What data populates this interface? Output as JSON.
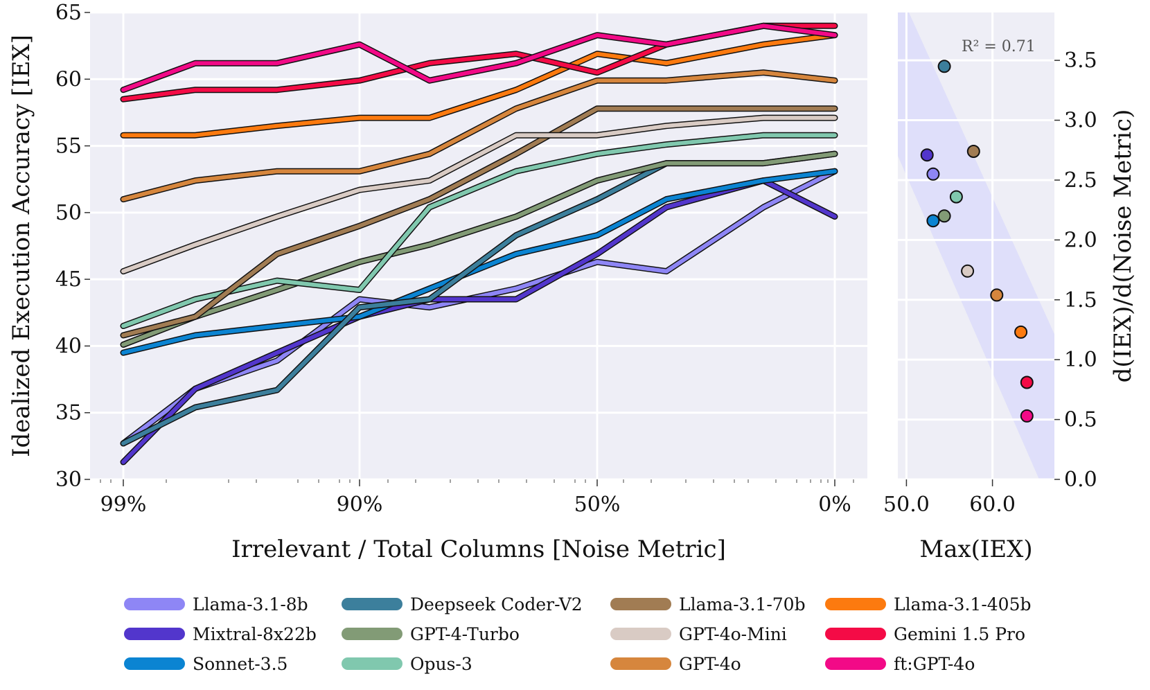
{
  "chart_data": [
    {
      "type": "line",
      "xlabel": "Irrelevant / Total Columns [Noise Metric]",
      "ylabel": "Idealized Execution Accuracy [IEX]",
      "x_scale": "log of remaining irrelevant fraction (reversed)",
      "x_tick_labels": [
        "99%",
        "90%",
        "50%",
        "0%"
      ],
      "x": [
        "99%",
        "97%",
        "93%",
        "90%",
        "80%",
        "67%",
        "50%",
        "33%",
        "10%",
        "0%"
      ],
      "ylim": [
        30,
        65
      ],
      "yticks": [
        30,
        35,
        40,
        45,
        50,
        55,
        60,
        65
      ],
      "grid": true,
      "series": [
        {
          "name": "Llama-3.1-8b",
          "color": "#8e86f5",
          "values": [
            32.7,
            36.8,
            38.9,
            43.5,
            42.9,
            44.3,
            46.3,
            45.6,
            50.4,
            53.1
          ]
        },
        {
          "name": "Mixtral-8x22b",
          "color": "#5236cc",
          "values": [
            31.3,
            36.8,
            39.5,
            42.2,
            43.5,
            43.5,
            46.9,
            50.4,
            52.4,
            49.7
          ]
        },
        {
          "name": "Sonnet-3.5",
          "color": "#0b84d2",
          "values": [
            39.5,
            40.8,
            41.5,
            42.2,
            44.3,
            46.9,
            48.3,
            51.0,
            52.4,
            53.1
          ]
        },
        {
          "name": "Deepseek Coder-V2",
          "color": "#3c7f9c",
          "values": [
            32.7,
            35.4,
            36.7,
            42.9,
            43.5,
            48.3,
            51.0,
            53.7,
            53.7,
            54.4
          ]
        },
        {
          "name": "GPT-4-Turbo",
          "color": "#829b76",
          "values": [
            40.1,
            42.2,
            44.2,
            46.3,
            47.6,
            49.7,
            52.4,
            53.7,
            53.7,
            54.4
          ]
        },
        {
          "name": "Opus-3",
          "color": "#80c8ae",
          "values": [
            41.5,
            43.5,
            44.9,
            44.2,
            50.4,
            53.1,
            54.4,
            55.1,
            55.8,
            55.8
          ]
        },
        {
          "name": "Llama-3.1-70b",
          "color": "#a17c53",
          "values": [
            40.8,
            42.2,
            46.9,
            49.0,
            51.0,
            54.4,
            57.8,
            57.8,
            57.8,
            57.8
          ]
        },
        {
          "name": "GPT-4o-Mini",
          "color": "#d9cbc4",
          "values": [
            45.6,
            47.6,
            49.7,
            51.7,
            52.4,
            55.8,
            55.8,
            56.5,
            57.1,
            57.1
          ]
        },
        {
          "name": "GPT-4o",
          "color": "#d6863d",
          "values": [
            51.0,
            52.4,
            53.1,
            53.1,
            54.4,
            57.8,
            59.9,
            59.9,
            60.5,
            59.9
          ]
        },
        {
          "name": "Llama-3.1-405b",
          "color": "#fc7a0f",
          "values": [
            55.8,
            55.8,
            56.5,
            57.1,
            57.1,
            59.2,
            61.9,
            61.2,
            62.6,
            63.3
          ]
        },
        {
          "name": "Gemini 1.5 Pro",
          "color": "#f40b46",
          "values": [
            58.5,
            59.2,
            59.2,
            59.9,
            61.2,
            61.9,
            60.5,
            62.6,
            64.0,
            64.0
          ]
        },
        {
          "name": "ft:GPT-4o",
          "color": "#f20a87",
          "values": [
            59.2,
            61.2,
            61.2,
            62.6,
            59.9,
            61.2,
            63.3,
            62.6,
            64.0,
            63.3
          ]
        }
      ]
    },
    {
      "type": "scatter",
      "xlabel": "Max(IEX)",
      "ylabel": "d(IEX)/d(Noise Metric)",
      "xlim": [
        49.0,
        67.2
      ],
      "ylim": [
        0.0,
        3.9
      ],
      "xticks": [
        50.0,
        60.0
      ],
      "yticks": [
        0.0,
        0.5,
        1.0,
        1.5,
        2.0,
        2.5,
        3.0,
        3.5
      ],
      "annotation": "R² = 0.71",
      "points": [
        {
          "name": "Llama-3.1-8b",
          "color": "#8e86f5",
          "x": 53.1,
          "y": 2.55
        },
        {
          "name": "Mixtral-8x22b",
          "color": "#5236cc",
          "x": 52.4,
          "y": 2.71
        },
        {
          "name": "Sonnet-3.5",
          "color": "#0b84d2",
          "x": 53.1,
          "y": 2.16
        },
        {
          "name": "Deepseek Coder-V2",
          "color": "#3c7f9c",
          "x": 54.4,
          "y": 3.45
        },
        {
          "name": "GPT-4-Turbo",
          "color": "#829b76",
          "x": 54.4,
          "y": 2.2
        },
        {
          "name": "Opus-3",
          "color": "#80c8ae",
          "x": 55.8,
          "y": 2.36
        },
        {
          "name": "Llama-3.1-70b",
          "color": "#a17c53",
          "x": 57.8,
          "y": 2.74
        },
        {
          "name": "GPT-4o-Mini",
          "color": "#d9cbc4",
          "x": 57.1,
          "y": 1.74
        },
        {
          "name": "GPT-4o",
          "color": "#d6863d",
          "x": 60.5,
          "y": 1.54
        },
        {
          "name": "Llama-3.1-405b",
          "color": "#fc7a0f",
          "x": 63.3,
          "y": 1.23
        },
        {
          "name": "Gemini 1.5 Pro",
          "color": "#f40b46",
          "x": 64.0,
          "y": 0.81
        },
        {
          "name": "ft:GPT-4o",
          "color": "#f20a87",
          "x": 64.0,
          "y": 0.53
        }
      ]
    }
  ]
}
